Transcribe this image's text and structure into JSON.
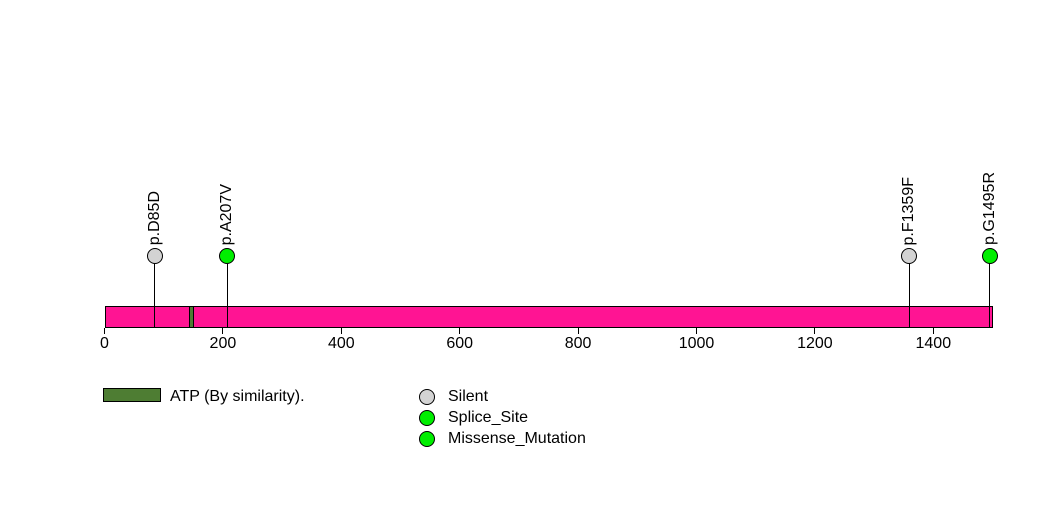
{
  "chart_data": {
    "type": "lollipop",
    "description": "Protein mutation lollipop plot",
    "xlim": [
      0,
      1500
    ],
    "protein_length": 1500,
    "x_ticks": [
      0,
      200,
      400,
      600,
      800,
      1000,
      1200,
      1400
    ],
    "bar_color": "#FF1493",
    "domains": [
      {
        "label": "ATP (By similarity).",
        "start": 142,
        "end": 151,
        "color": "#4E7D33"
      }
    ],
    "mutations": [
      {
        "label": "p.D85D",
        "position": 85,
        "color": "#D3D3D3"
      },
      {
        "label": "p.A207V",
        "position": 207,
        "color": "#00EE00"
      },
      {
        "label": "p.F1359F",
        "position": 1359,
        "color": "#D3D3D3"
      },
      {
        "label": "p.G1495R",
        "position": 1495,
        "color": "#00EE00"
      }
    ],
    "legend": {
      "domain_label": "ATP (By similarity).",
      "mutation_types": [
        {
          "label": "Silent",
          "color": "#D3D3D3"
        },
        {
          "label": "Splice_Site",
          "color": "#00EE00"
        },
        {
          "label": "Missense_Mutation",
          "color": "#00EE00"
        }
      ]
    }
  }
}
